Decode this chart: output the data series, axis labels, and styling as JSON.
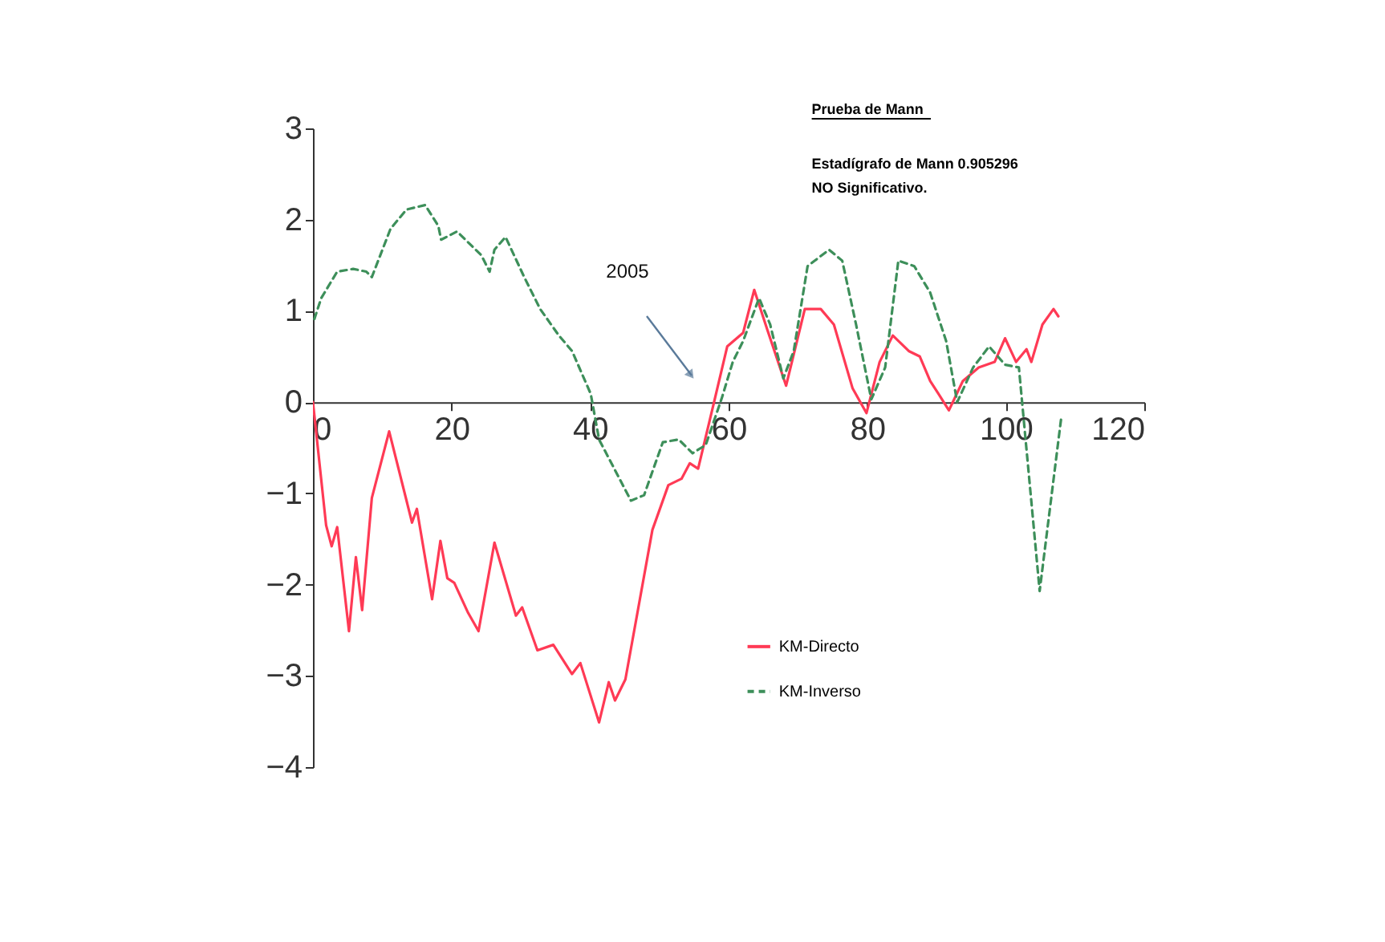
{
  "chart_data": {
    "type": "line",
    "xlim": [
      0,
      120
    ],
    "xticks": [
      0,
      20,
      40,
      60,
      80,
      100,
      120
    ],
    "ylim": [
      -4,
      3
    ],
    "yticks": [
      -4,
      -3,
      -2,
      -1,
      0,
      1,
      2,
      3
    ],
    "grid": false,
    "legend": "bottom",
    "marker": "none",
    "annotations": [
      "Prueba de Mann",
      "Estadígrafo  de Mann    0.905296",
      "NO Significativo.",
      "2005"
    ],
    "series": [
      {
        "name": "KM-Directo",
        "color": "#ff3a55",
        "line_style": "solid",
        "x": [
          0,
          1.9,
          2.7,
          3.5,
          5.2,
          6.2,
          7.1,
          8.5,
          11.0,
          14.3,
          15.0,
          17.2,
          18.4,
          19.4,
          20.4,
          22.4,
          23.9,
          26.2,
          29.3,
          30.2,
          32.4,
          34.7,
          37.4,
          38.6,
          41.3,
          42.7,
          43.6,
          45.1,
          49.0,
          51.3,
          53.2,
          54.4,
          55.6,
          57.9,
          59.8,
          62.1,
          63.7,
          65.6,
          68.3,
          71.0,
          73.3,
          75.2,
          77.9,
          79.9,
          81.8,
          83.7,
          86.0,
          87.6,
          89.1,
          90.3,
          91.8,
          93.8,
          96.1,
          98.4,
          99.9,
          101.5,
          103.0,
          103.7,
          105.3,
          106.9,
          107.6
        ],
        "values": [
          0,
          -1.35,
          -1.58,
          -1.37,
          -2.51,
          -1.7,
          -2.28,
          -1.05,
          -0.32,
          -1.32,
          -1.17,
          -2.16,
          -1.52,
          -1.93,
          -1.98,
          -2.31,
          -2.51,
          -1.54,
          -2.34,
          -2.25,
          -2.72,
          -2.66,
          -2.98,
          -2.86,
          -3.51,
          -3.07,
          -3.27,
          -3.04,
          -1.4,
          -0.91,
          -0.84,
          -0.67,
          -0.73,
          0,
          0.61,
          0.76,
          1.23,
          0.79,
          0.18,
          1.02,
          1.02,
          0.85,
          0.15,
          -0.12,
          0.44,
          0.73,
          0.56,
          0.5,
          0.23,
          0.09,
          -0.09,
          0.23,
          0.38,
          0.44,
          0.7,
          0.44,
          0.58,
          0.44,
          0.85,
          1.02,
          0.94
        ]
      },
      {
        "name": "KM-Inverso",
        "color": "#3d8f5a",
        "line_style": "dashed",
        "x": [
          0.2,
          1.2,
          3.5,
          5.8,
          7.7,
          8.5,
          11.2,
          13.5,
          16.2,
          18.1,
          18.5,
          20.8,
          24.3,
          25.5,
          26.2,
          27.8,
          30.5,
          32.8,
          35.5,
          37.4,
          40.1,
          41.3,
          45.9,
          47.8,
          50.5,
          52.8,
          54.8,
          56.7,
          59.0,
          60.6,
          62.1,
          64.4,
          66.0,
          67.9,
          69.4,
          71.4,
          74.5,
          76.4,
          78.4,
          80.6,
          82.6,
          84.5,
          86.8,
          89.1,
          91.4,
          93.0,
          95.3,
          97.6,
          99.9,
          101.9,
          104.9,
          108.0
        ],
        "values": [
          0.91,
          1.14,
          1.43,
          1.46,
          1.43,
          1.37,
          1.9,
          2.11,
          2.16,
          1.93,
          1.78,
          1.87,
          1.61,
          1.43,
          1.67,
          1.81,
          1.37,
          1.02,
          0.73,
          0.56,
          0.09,
          -0.41,
          -1.08,
          -1.02,
          -0.44,
          -0.41,
          -0.56,
          -0.47,
          0.04,
          0.44,
          0.67,
          1.14,
          0.85,
          0.26,
          0.56,
          1.49,
          1.67,
          1.55,
          0.85,
          0.03,
          0.38,
          1.55,
          1.49,
          1.2,
          0.67,
          0,
          0.38,
          0.61,
          0.41,
          0.38,
          -2.07,
          -0.18
        ]
      }
    ]
  }
}
